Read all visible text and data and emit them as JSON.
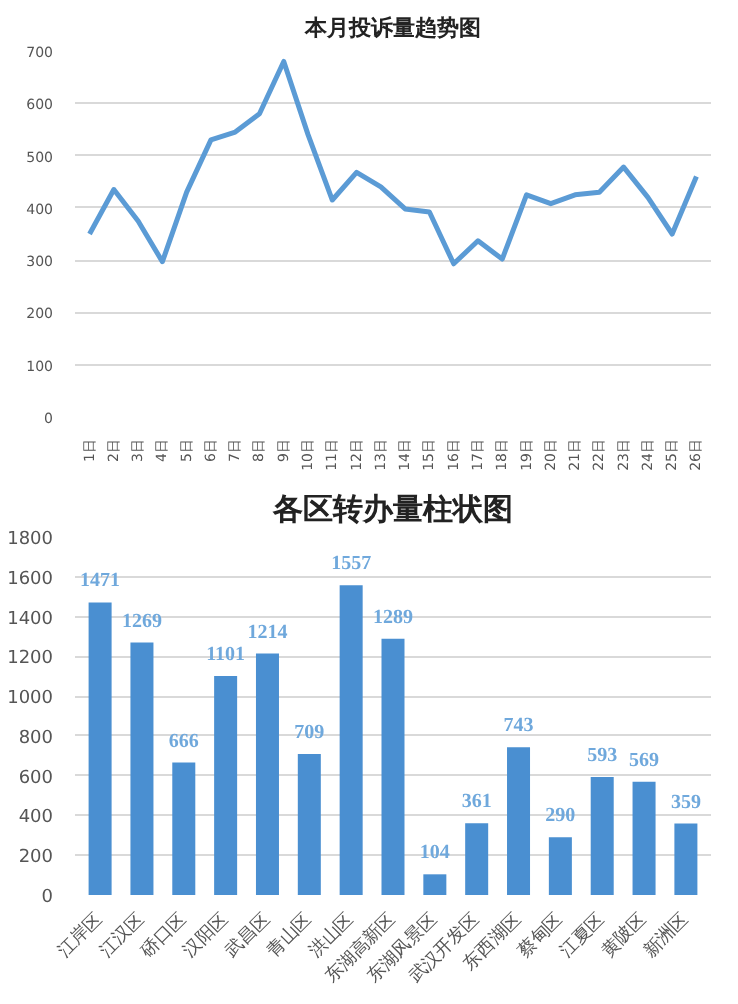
{
  "chart_data": [
    {
      "type": "line",
      "title": "本月投诉量趋势图",
      "categories": [
        "1日",
        "2日",
        "3日",
        "4日",
        "5日",
        "6日",
        "7日",
        "8日",
        "9日",
        "10日",
        "11日",
        "12日",
        "13日",
        "14日",
        "15日",
        "16日",
        "17日",
        "18日",
        "19日",
        "20日",
        "21日",
        "22日",
        "23日",
        "24日",
        "25日",
        "26日"
      ],
      "series": [
        {
          "color": "#5b9bd5",
          "values": [
            350,
            435,
            375,
            297,
            430,
            530,
            545,
            580,
            680,
            540,
            415,
            468,
            440,
            398,
            392,
            293,
            337,
            302,
            425,
            408,
            425,
            430,
            478,
            420,
            350,
            460
          ]
        }
      ],
      "ylim": [
        0,
        700
      ],
      "yticks": [
        0,
        100,
        200,
        300,
        400,
        500,
        600,
        700
      ],
      "grid": "y",
      "marker": "none",
      "line_style": "solid"
    },
    {
      "type": "bar",
      "title": "各区转办量柱状图",
      "categories": [
        "江岸区",
        "江汉区",
        "硚口区",
        "汉阳区",
        "武昌区",
        "青山区",
        "洪山区",
        "东湖高新区",
        "东湖风景区",
        "武汉开发区",
        "东西湖区",
        "蔡甸区",
        "江夏区",
        "黄陂区",
        "新洲区"
      ],
      "series": [
        {
          "color": "#4a8fd1",
          "values": [
            1471,
            1269,
            666,
            1101,
            1214,
            709,
            1557,
            1289,
            104,
            361,
            743,
            290,
            593,
            569,
            359
          ]
        }
      ],
      "ylim": [
        0,
        1800
      ],
      "yticks": [
        0,
        200,
        400,
        600,
        800,
        1000,
        1200,
        1400,
        1600,
        1800
      ],
      "grid": "y",
      "data_labels": true
    }
  ]
}
